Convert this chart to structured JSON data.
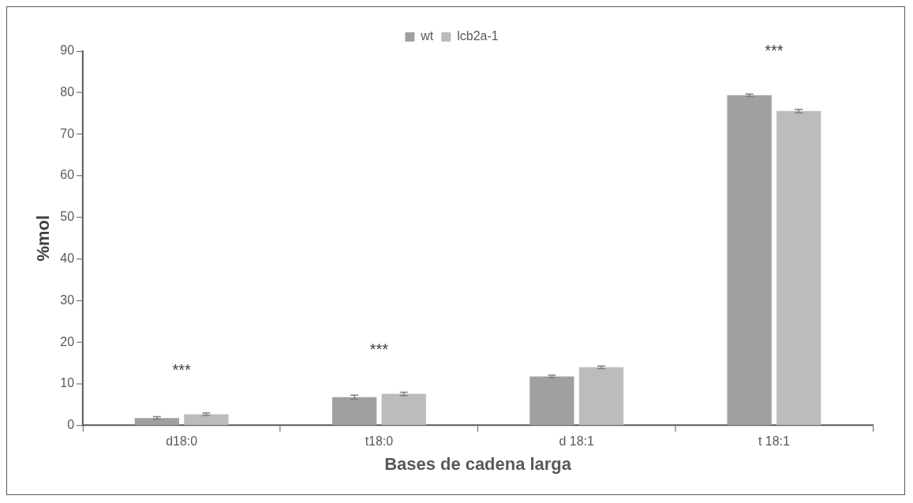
{
  "chart_data": {
    "type": "bar",
    "xlabel": "Bases de cadena larga",
    "ylabel": "%mol",
    "categories": [
      "d18:0",
      "t18:0",
      "d 18:1",
      "t 18:1"
    ],
    "series": [
      {
        "name": "wt",
        "color": "#a0a0a0",
        "values": [
          1.8,
          6.8,
          11.8,
          79.4
        ],
        "errors": [
          0.3,
          0.5,
          0.3,
          0.3
        ]
      },
      {
        "name": "lcb2a-1",
        "color": "#bcbcbc",
        "values": [
          2.7,
          7.6,
          14,
          75.6
        ],
        "errors": [
          0.3,
          0.4,
          0.3,
          0.4
        ]
      }
    ],
    "ylim": [
      0,
      90
    ],
    "yticks": [
      0,
      10,
      20,
      30,
      40,
      50,
      60,
      70,
      80,
      90
    ],
    "grid": false,
    "legend": "top",
    "annotations": [
      "***",
      "***",
      "***"
    ]
  }
}
